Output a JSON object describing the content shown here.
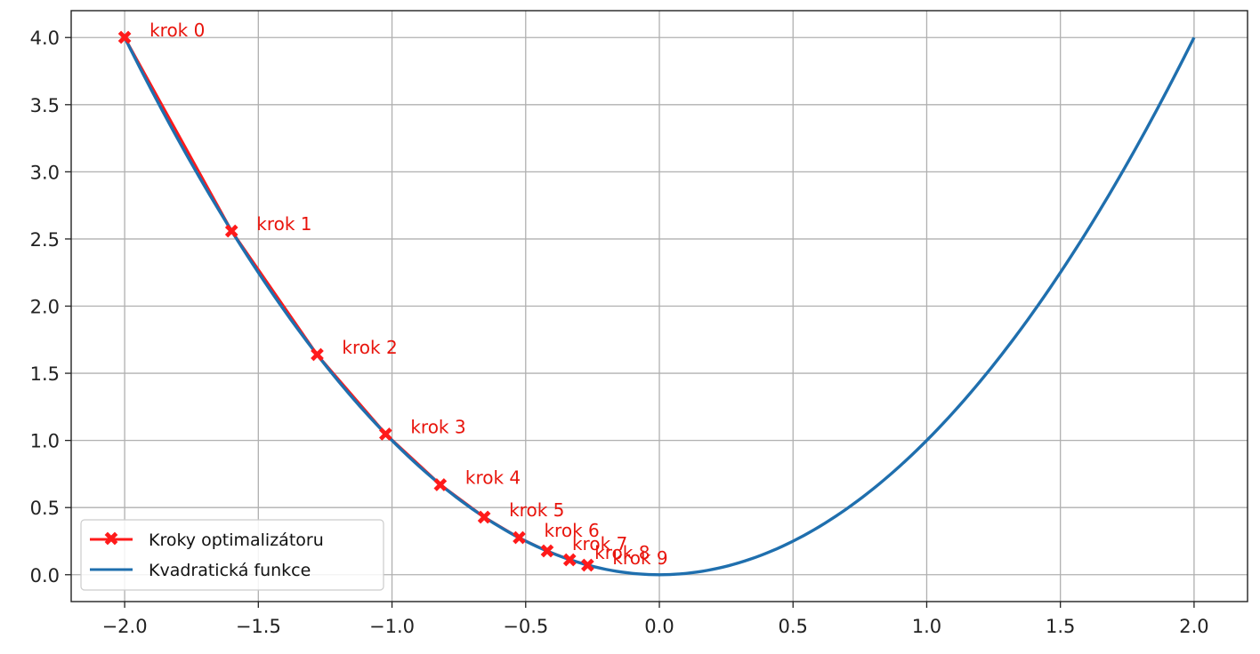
{
  "chart_data": {
    "type": "line",
    "title": "",
    "xlabel": "",
    "ylabel": "",
    "xlim": [
      -2.2,
      2.2
    ],
    "ylim": [
      -0.2,
      4.2
    ],
    "grid": true,
    "legend_position": "lower-left",
    "xticks": [
      -2.0,
      -1.5,
      -1.0,
      -0.5,
      0.0,
      0.5,
      1.0,
      1.5,
      2.0
    ],
    "xtick_labels": [
      "−2.0",
      "−1.5",
      "−1.0",
      "−0.5",
      "0.0",
      "0.5",
      "1.0",
      "1.5",
      "2.0"
    ],
    "yticks": [
      0.0,
      0.5,
      1.0,
      1.5,
      2.0,
      2.5,
      3.0,
      3.5,
      4.0
    ],
    "ytick_labels": [
      "0.0",
      "0.5",
      "1.0",
      "1.5",
      "2.0",
      "2.5",
      "3.0",
      "3.5",
      "4.0"
    ],
    "series": [
      {
        "name": "Kroky optimalizátoru",
        "kind": "line-markers",
        "color": "#ff1a1a",
        "marker": "X",
        "x": [
          -2.0,
          -1.6,
          -1.28,
          -1.024,
          -0.8192,
          -0.65536,
          -0.524288,
          -0.4194304,
          -0.33554432,
          -0.268435456
        ],
        "y": [
          4.0,
          2.56,
          1.6384,
          1.048576,
          0.67108864,
          0.42949673,
          0.27487791,
          0.17592186,
          0.11258999,
          0.07205759
        ]
      },
      {
        "name": "Kvadratická funkce",
        "kind": "line",
        "color": "#1f6fae",
        "function": "x^2",
        "x_range": [
          -2.0,
          2.0
        ]
      }
    ],
    "annotations": [
      "krok 0",
      "krok 1",
      "krok 2",
      "krok 3",
      "krok 4",
      "krok 5",
      "krok 6",
      "krok 7",
      "krok 8",
      "krok 9"
    ]
  }
}
